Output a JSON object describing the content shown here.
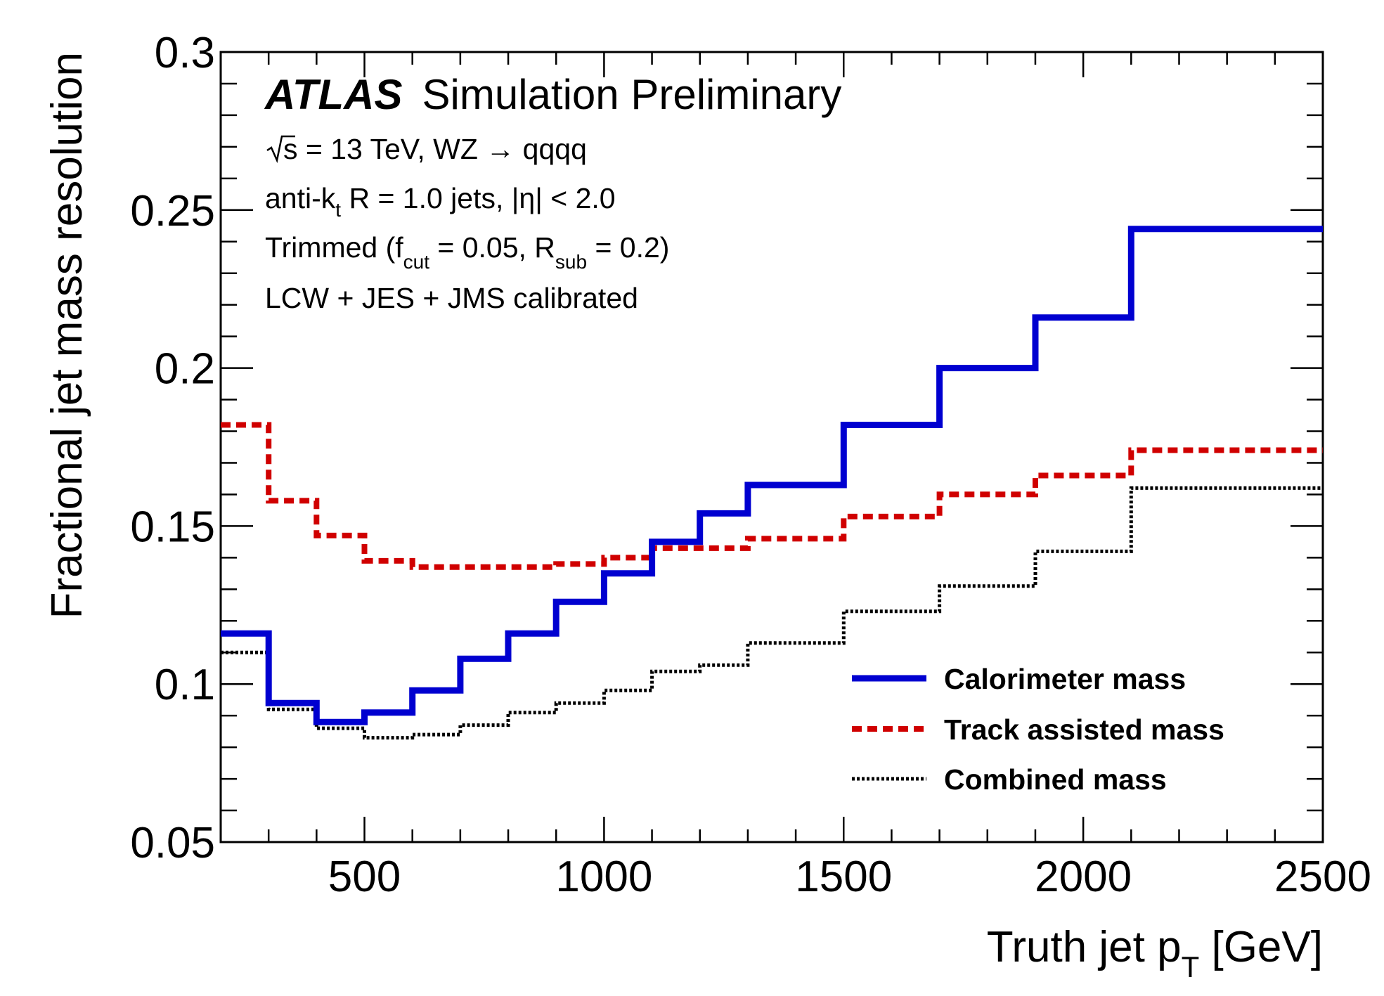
{
  "chart_data": {
    "type": "line",
    "step": true,
    "xlabel": "Truth jet p",
    "xlabel_sub": "T",
    "xlabel_unit": " [GeV]",
    "ylabel": "Fractional jet mass resolution",
    "xlim": [
      200,
      2500
    ],
    "ylim": [
      0.05,
      0.3
    ],
    "x_ticks": [
      500,
      1000,
      1500,
      2000,
      2500
    ],
    "x_tick_labels": [
      "500",
      "1000",
      "1500",
      "2000",
      "2500"
    ],
    "y_ticks": [
      0.05,
      0.1,
      0.15,
      0.2,
      0.25,
      0.3
    ],
    "y_tick_labels": [
      "0.05",
      "0.1",
      "0.15",
      "0.2",
      "0.25",
      "0.3"
    ],
    "bin_edges": [
      200,
      300,
      400,
      500,
      600,
      700,
      800,
      900,
      1000,
      1100,
      1200,
      1300,
      1500,
      1700,
      1900,
      2100,
      2500
    ],
    "series": [
      {
        "name": "Calorimeter mass",
        "color": "#0000d0",
        "style": "solid",
        "values": [
          0.116,
          0.094,
          0.088,
          0.091,
          0.098,
          0.108,
          0.116,
          0.126,
          0.135,
          0.145,
          0.154,
          0.163,
          0.182,
          0.2,
          0.216,
          0.244
        ]
      },
      {
        "name": "Track assisted mass",
        "color": "#d00000",
        "style": "dashed",
        "values": [
          0.182,
          0.158,
          0.147,
          0.139,
          0.137,
          0.137,
          0.137,
          0.138,
          0.14,
          0.143,
          0.143,
          0.146,
          0.153,
          0.16,
          0.166,
          0.174
        ]
      },
      {
        "name": "Combined mass",
        "color": "#000000",
        "style": "dotted",
        "values": [
          0.11,
          0.092,
          0.086,
          0.083,
          0.084,
          0.087,
          0.091,
          0.094,
          0.098,
          0.104,
          0.106,
          0.113,
          0.123,
          0.131,
          0.142,
          0.162
        ]
      }
    ],
    "legend_position": "bottom-right",
    "annotations": {
      "experiment": "ATLAS",
      "status": "Simulation Preliminary",
      "line1_pre": "s = 13 TeV, WZ ",
      "line1_arrow": "→",
      "line1_post": " qqqq",
      "line2_pre": "anti-k",
      "line2_sub": "t",
      "line2_mid": " R = 1.0 jets, |",
      "line2_eta": "η",
      "line2_post": "| < 2.0",
      "line3_pre": "Trimmed (f",
      "line3_sub1": "cut",
      "line3_mid": " = 0.05, R",
      "line3_sub2": "sub",
      "line3_post": " = 0.2)",
      "line4": "LCW + JES + JMS calibrated"
    }
  }
}
